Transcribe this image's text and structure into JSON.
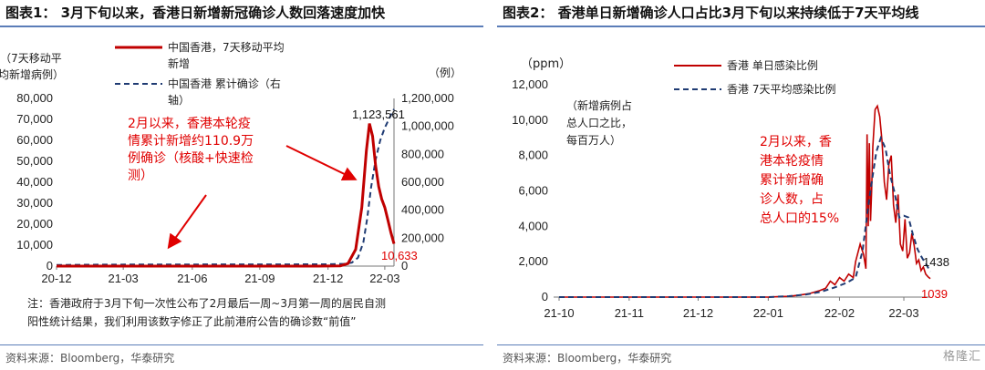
{
  "chart_data": [
    {
      "type": "line",
      "title": "图表1：  3月下旬以来，香港日新增新冠确诊人数回落速度加快",
      "source": "资料来源：Bloomberg，华泰研究",
      "left_axis": {
        "label": "（7天移动平均新增病例）",
        "ticks": [
          "0",
          "10,000",
          "20,000",
          "30,000",
          "40,000",
          "50,000",
          "60,000",
          "70,000",
          "80,000"
        ],
        "ylim": [
          0,
          80000
        ]
      },
      "right_axis": {
        "label": "（例）",
        "ticks": [
          "0",
          "200,000",
          "400,000",
          "600,000",
          "800,000",
          "1,000,000",
          "1,200,000"
        ],
        "ylim": [
          0,
          1200000
        ]
      },
      "x_ticks": [
        "20-12",
        "21-03",
        "21-06",
        "21-09",
        "21-12",
        "22-03"
      ],
      "series": [
        {
          "name": "中国香港，7天移动平均新增",
          "axis": "left",
          "color": "#c00000",
          "values": [
            [
              0,
              0
            ],
            [
              20,
              10
            ],
            [
              40,
              20
            ],
            [
              60,
              10
            ],
            [
              80,
              10
            ],
            [
              100,
              10
            ],
            [
              120,
              10
            ],
            [
              140,
              10
            ],
            [
              160,
              10
            ],
            [
              180,
              10
            ],
            [
              200,
              10
            ],
            [
              220,
              10
            ],
            [
              240,
              10
            ],
            [
              260,
              10
            ],
            [
              280,
              10
            ],
            [
              300,
              10
            ],
            [
              320,
              10
            ],
            [
              340,
              10
            ],
            [
              355,
              30
            ],
            [
              370,
              150
            ],
            [
              380,
              1200
            ],
            [
              390,
              8000
            ],
            [
              398,
              28000
            ],
            [
              404,
              55000
            ],
            [
              408,
              68000
            ],
            [
              412,
              62000
            ],
            [
              416,
              48000
            ],
            [
              420,
              38000
            ],
            [
              424,
              32000
            ],
            [
              428,
              28000
            ],
            [
              432,
              22000
            ],
            [
              436,
              16000
            ],
            [
              440,
              10633
            ]
          ]
        },
        {
          "name": "中国香港  累计确诊（右轴）",
          "axis": "right",
          "color": "#1f3b73",
          "dashed": true,
          "values": [
            [
              0,
              8000
            ],
            [
              60,
              10500
            ],
            [
              120,
              11800
            ],
            [
              180,
              12000
            ],
            [
              240,
              12300
            ],
            [
              300,
              12500
            ],
            [
              340,
              12800
            ],
            [
              360,
              13500
            ],
            [
              375,
              16000
            ],
            [
              385,
              25000
            ],
            [
              393,
              60000
            ],
            [
              400,
              170000
            ],
            [
              405,
              340000
            ],
            [
              410,
              560000
            ],
            [
              416,
              760000
            ],
            [
              422,
              900000
            ],
            [
              428,
              990000
            ],
            [
              434,
              1060000
            ],
            [
              440,
              1123561
            ]
          ]
        }
      ],
      "annotations": [
        {
          "text": "1,123,561",
          "color": "#111"
        },
        {
          "text": "10,633",
          "color": "#e00000"
        },
        {
          "lines": [
            "2月以来，香港本轮疫",
            "情累计新增约110.9万",
            "例确诊（核酸+快速检",
            "测）"
          ],
          "color": "#e00000"
        }
      ],
      "note_lines": [
        "注：香港政府于3月下旬一次性公布了2月最后一周~3月第一周的居民自测",
        "阳性统计结果，我们利用该数字修正了此前港府公告的确诊数“前值”"
      ]
    },
    {
      "type": "line",
      "title": "图表2：  香港单日新增确诊人口占比3月下旬以来持续低于7天平均线",
      "source": "资料来源：Bloomberg，华泰研究",
      "y_axis": {
        "label": "（ppm）",
        "sublabel_lines": [
          "（新增病例占",
          "总人口之比，",
          "每百万人）"
        ],
        "ticks": [
          "0",
          "2,000",
          "4,000",
          "6,000",
          "8,000",
          "10,000",
          "12,000"
        ],
        "ylim": [
          0,
          12000
        ]
      },
      "x_ticks": [
        "21-10",
        "21-11",
        "21-12",
        "22-01",
        "22-02",
        "22-03"
      ],
      "series": [
        {
          "name": "香港  单日感染比例",
          "color": "#c00000",
          "values": [
            [
              0,
              0
            ],
            [
              60,
              0
            ],
            [
              120,
              0
            ],
            [
              150,
              0
            ],
            [
              170,
              0
            ],
            [
              182,
              0
            ],
            [
              190,
              20
            ],
            [
              200,
              40
            ],
            [
              210,
              120
            ],
            [
              218,
              200
            ],
            [
              226,
              350
            ],
            [
              232,
              500
            ],
            [
              236,
              900
            ],
            [
              240,
              700
            ],
            [
              244,
              1100
            ],
            [
              248,
              900
            ],
            [
              252,
              1300
            ],
            [
              256,
              1100
            ],
            [
              258,
              2000
            ],
            [
              262,
              3000
            ],
            [
              265,
              2400
            ],
            [
              267,
              1600
            ],
            [
              268,
              9200
            ],
            [
              269,
              4000
            ],
            [
              270,
              8700
            ],
            [
              271,
              4300
            ],
            [
              272,
              6000
            ],
            [
              273,
              8500
            ],
            [
              275,
              10600
            ],
            [
              277,
              10800
            ],
            [
              279,
              10200
            ],
            [
              281,
              8800
            ],
            [
              283,
              6500
            ],
            [
              285,
              5500
            ],
            [
              287,
              7500
            ],
            [
              289,
              8000
            ],
            [
              291,
              5200
            ],
            [
              293,
              4200
            ],
            [
              295,
              5800
            ],
            [
              297,
              3000
            ],
            [
              299,
              2600
            ],
            [
              301,
              4400
            ],
            [
              303,
              2200
            ],
            [
              305,
              2500
            ],
            [
              307,
              3600
            ],
            [
              309,
              2900
            ],
            [
              311,
              1900
            ],
            [
              313,
              2100
            ],
            [
              315,
              1500
            ],
            [
              317,
              1700
            ],
            [
              319,
              1300
            ],
            [
              321,
              1150
            ],
            [
              323,
              1039
            ]
          ]
        },
        {
          "name": "香港  7天平均感染比例",
          "color": "#1f3b73",
          "dashed": true,
          "values": [
            [
              0,
              0
            ],
            [
              60,
              0
            ],
            [
              120,
              0
            ],
            [
              182,
              0
            ],
            [
              200,
              50
            ],
            [
              215,
              150
            ],
            [
              228,
              300
            ],
            [
              240,
              550
            ],
            [
              250,
              800
            ],
            [
              258,
              1100
            ],
            [
              264,
              2600
            ],
            [
              270,
              5600
            ],
            [
              276,
              8200
            ],
            [
              280,
              9000
            ],
            [
              284,
              8400
            ],
            [
              288,
              6900
            ],
            [
              292,
              5900
            ],
            [
              296,
              4500
            ],
            [
              300,
              4600
            ],
            [
              304,
              4500
            ],
            [
              308,
              3500
            ],
            [
              312,
              2700
            ],
            [
              316,
              2200
            ],
            [
              320,
              1800
            ],
            [
              323,
              1438
            ]
          ]
        }
      ],
      "annotations": [
        {
          "text": "1438",
          "color": "#111"
        },
        {
          "text": "1039",
          "color": "#e00000"
        },
        {
          "lines": [
            "2月以来，香",
            "港本轮疫情",
            "累计新增确",
            "诊人数，占",
            "总人口的15%"
          ],
          "color": "#e00000"
        }
      ]
    }
  ],
  "brand": "格隆汇"
}
